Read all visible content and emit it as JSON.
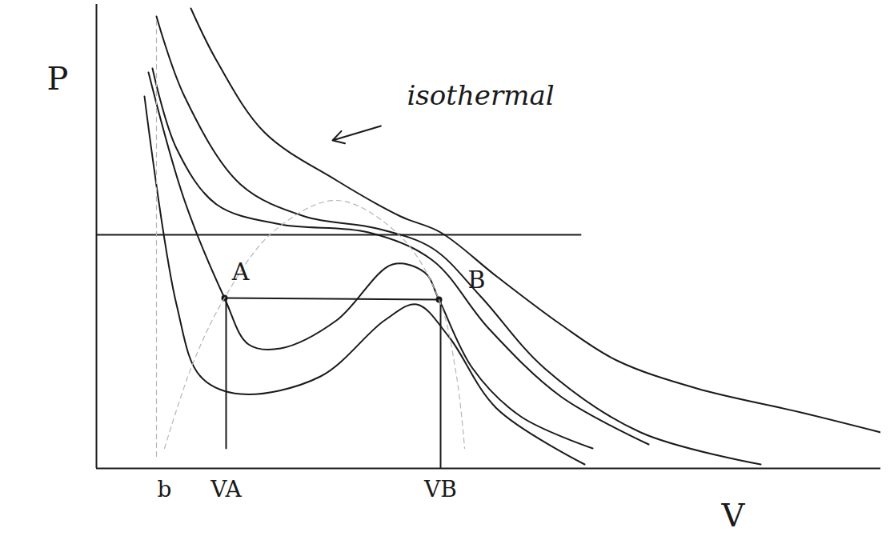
{
  "chart_data": {
    "type": "line",
    "x_label": "V",
    "y_label": "P",
    "xlim": [
      0,
      9.8
    ],
    "ylim": [
      0,
      11.6
    ],
    "xticks": [
      {
        "value": 0.85,
        "label": "b"
      },
      {
        "value": 1.62,
        "label": "VA"
      },
      {
        "value": 4.3,
        "label": "VB"
      }
    ],
    "yticks": [],
    "tick_labels": "x",
    "grid": false,
    "series": [
      {
        "color": "#1a1a1a",
        "line_style": "solid",
        "x": [
          1.18,
          1.5,
          2.1,
          3.0,
          3.8,
          4.3,
          5.0,
          5.8,
          6.5,
          7.5,
          8.8,
          9.8
        ],
        "values": [
          11.5,
          10.2,
          8.4,
          7.2,
          6.3,
          5.9,
          4.8,
          3.6,
          2.7,
          2.0,
          1.4,
          0.9
        ]
      },
      {
        "color": "#1a1a1a",
        "line_style": "solid",
        "x": [
          0.75,
          1.1,
          1.8,
          2.6,
          3.5,
          4.2,
          4.8,
          5.6,
          6.8,
          8.3
        ],
        "values": [
          11.3,
          9.3,
          7.1,
          6.3,
          6.0,
          5.5,
          4.3,
          2.5,
          0.9,
          0.1
        ]
      },
      {
        "color": "#1a1a1a",
        "line_style": "solid",
        "x": [
          0.7,
          1.0,
          1.5,
          2.3,
          3.4,
          4.2,
          4.9,
          5.8,
          6.9
        ],
        "values": [
          10.0,
          8.0,
          6.6,
          6.1,
          5.9,
          5.2,
          3.5,
          1.8,
          0.6
        ]
      },
      {
        "color": "#1a1a1a",
        "line_style": "solid",
        "x": [
          0.65,
          1.1,
          1.6,
          1.9,
          2.3,
          3.0,
          3.7,
          4.1,
          4.28,
          4.7,
          5.3,
          6.2
        ],
        "values": [
          9.9,
          6.7,
          4.26,
          3.1,
          3.0,
          3.7,
          5.1,
          4.9,
          4.22,
          2.5,
          1.3,
          0.5
        ]
      },
      {
        "color": "#1a1a1a",
        "line_style": "solid",
        "x": [
          0.6,
          1.0,
          1.3,
          1.8,
          2.8,
          3.6,
          4.0,
          4.4,
          5.0,
          6.1
        ],
        "values": [
          9.3,
          4.1,
          2.3,
          1.86,
          2.3,
          3.7,
          4.1,
          3.3,
          1.5,
          0.1
        ]
      },
      {
        "color": "#1a1a1a",
        "line_style": "solid",
        "x": [
          0,
          6.05
        ],
        "values": [
          5.84,
          5.84
        ]
      },
      {
        "color": "#1a1a1a",
        "line_style": "solid",
        "marker": "dot",
        "x": [
          1.6,
          4.28
        ],
        "values": [
          4.26,
          4.22
        ]
      },
      {
        "color": "#1a1a1a",
        "line_style": "solid",
        "x": [
          1.62,
          1.62
        ],
        "values": [
          0.5,
          4.26
        ]
      },
      {
        "color": "#1a1a1a",
        "line_style": "solid",
        "x": [
          4.3,
          4.3
        ],
        "values": [
          0,
          4.22
        ]
      },
      {
        "color": "#b5b5b5",
        "line_style": "dashed",
        "x": [
          0.85,
          1.2,
          1.6,
          2.2,
          3.0,
          3.8,
          4.28,
          4.5,
          4.6
        ],
        "values": [
          0.5,
          2.6,
          4.26,
          5.9,
          6.7,
          5.8,
          4.22,
          2.3,
          0.5
        ]
      },
      {
        "color": "#b5b5b5",
        "line_style": "dashed",
        "x": [
          0.75,
          0.75
        ],
        "values": [
          0.3,
          11.3
        ]
      }
    ],
    "annotations": [
      {
        "text": "A",
        "x": 1.8,
        "y": 4.9
      },
      {
        "text": "B",
        "x": 4.75,
        "y": 4.7
      },
      {
        "text": "isothermal",
        "x": 4.8,
        "y": 9.3,
        "arrow_to": [
          2.95,
          8.2
        ]
      }
    ]
  }
}
